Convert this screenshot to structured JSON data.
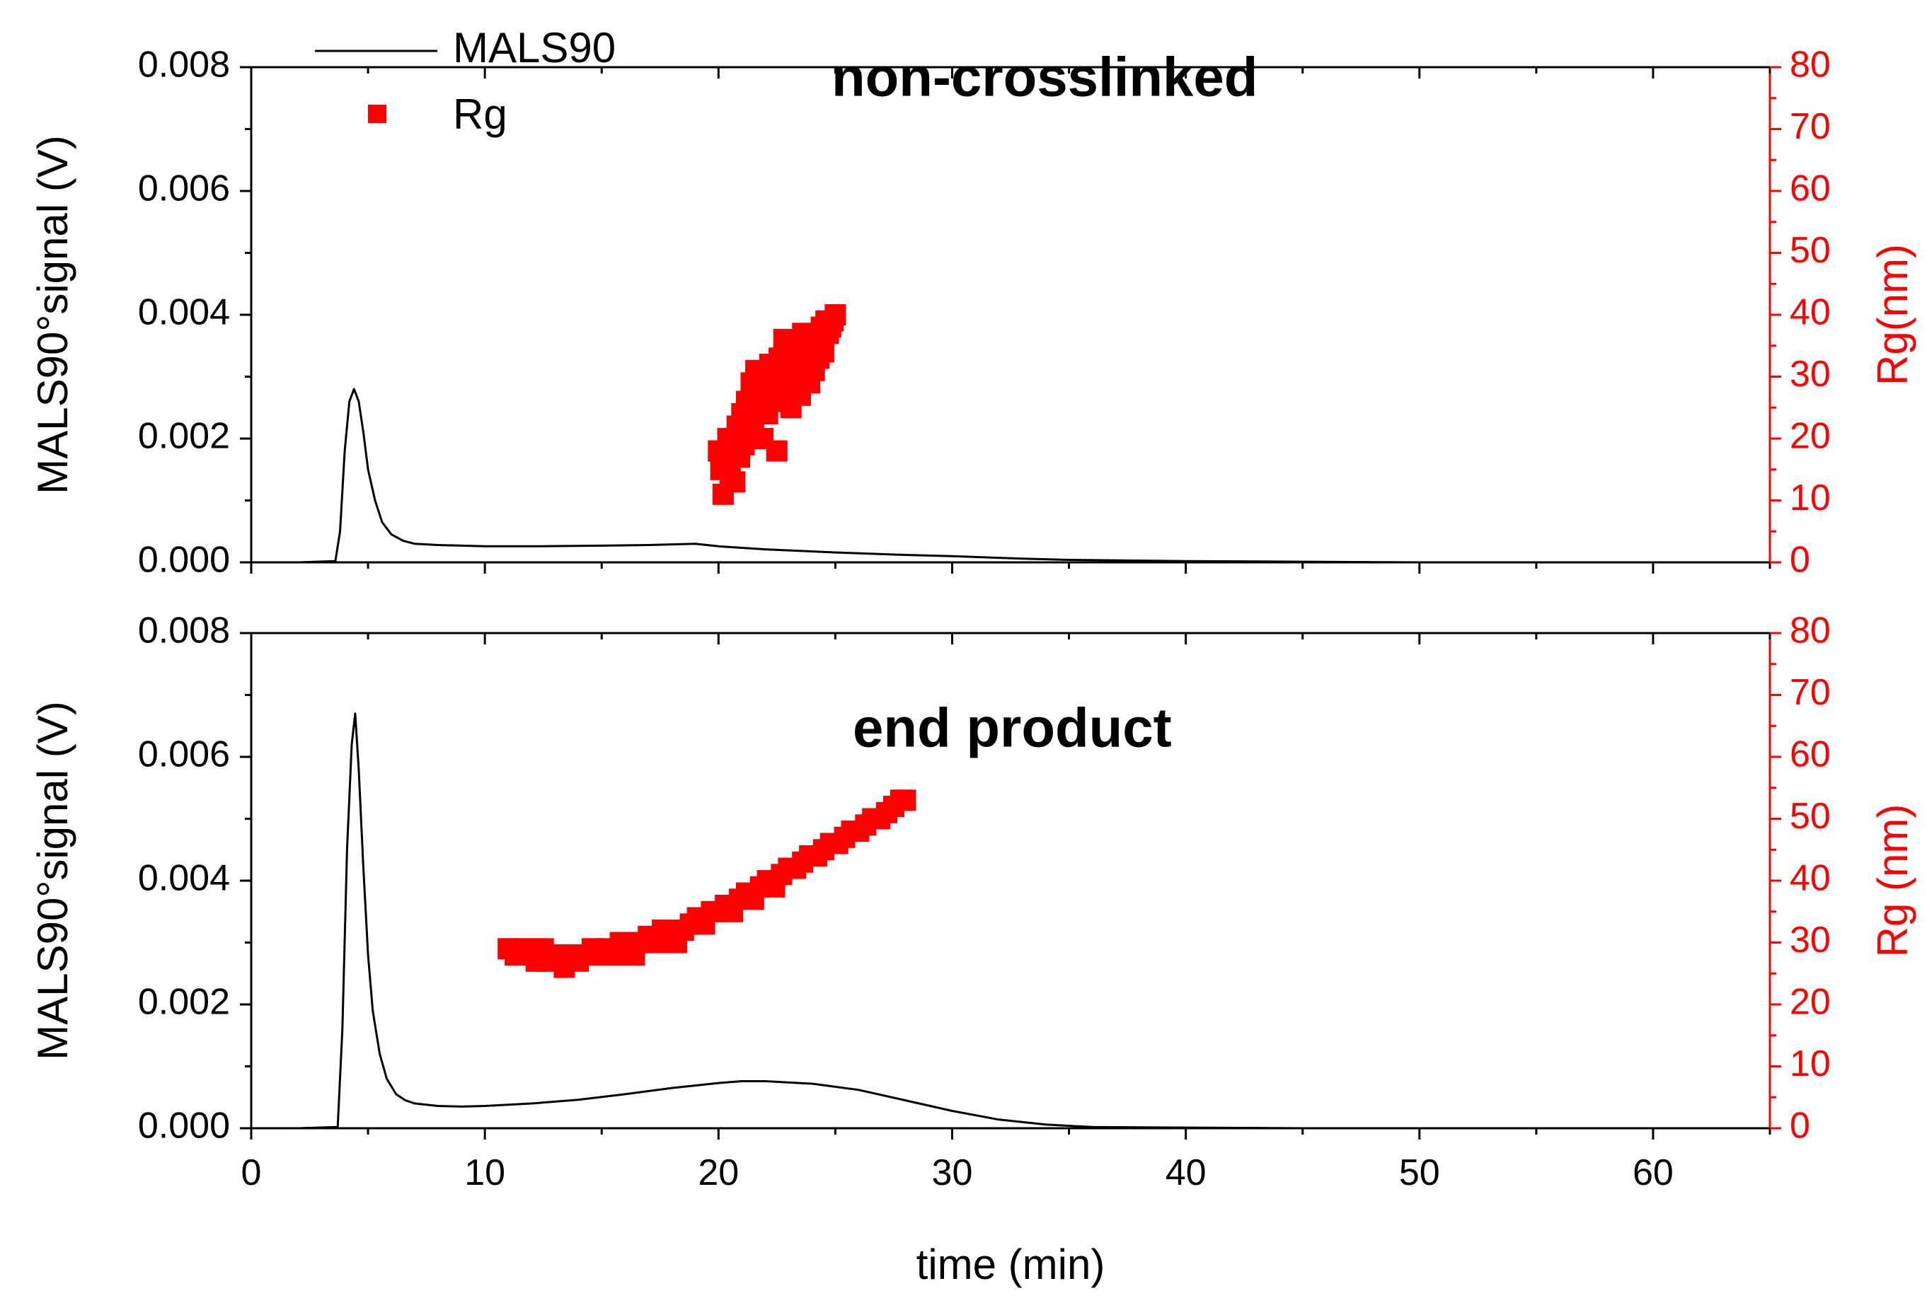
{
  "colors": {
    "signal": "#000000",
    "rg": "#ff0000",
    "background": "#ffffff"
  },
  "legend": {
    "signal_label": "MALS90",
    "rg_label": "Rg"
  },
  "chart_data": [
    {
      "type": "line+scatter",
      "panel_title": "non-crosslinked",
      "xlabel": "time (min)",
      "ylabel": "MALS90°signal (V)",
      "y2label": "Rg(nm)",
      "xlim": [
        0,
        65
      ],
      "ylim": [
        0,
        0.008
      ],
      "y2lim": [
        0,
        80
      ],
      "x_ticks": [
        0,
        10,
        20,
        30,
        40,
        50,
        60
      ],
      "y_ticks": [
        "0.000",
        "0.002",
        "0.004",
        "0.006",
        "0.008"
      ],
      "y2_ticks": [
        "0",
        "10",
        "20",
        "30",
        "40",
        "50",
        "60",
        "70",
        "80"
      ],
      "series": [
        {
          "name": "MALS90",
          "kind": "line",
          "axis": "left",
          "x": [
            0,
            2,
            3.6,
            3.8,
            4.0,
            4.2,
            4.4,
            4.6,
            4.8,
            5.0,
            5.3,
            5.6,
            6.0,
            6.5,
            7.0,
            8,
            10,
            12,
            15,
            17,
            19,
            20,
            22,
            25,
            28,
            30,
            33,
            35,
            40,
            45,
            50,
            55,
            60,
            65
          ],
          "y": [
            0.0,
            0.0,
            2e-05,
            0.0005,
            0.0018,
            0.0026,
            0.0028,
            0.0026,
            0.0021,
            0.0015,
            0.001,
            0.00065,
            0.00045,
            0.00035,
            0.0003,
            0.00028,
            0.00026,
            0.00026,
            0.00027,
            0.00028,
            0.0003,
            0.00026,
            0.00021,
            0.00016,
            0.00012,
            0.0001,
            6e-05,
            4e-05,
            2e-05,
            1e-05,
            0.0,
            0.0,
            0.0,
            0.0
          ]
        },
        {
          "name": "Rg",
          "kind": "scatter",
          "axis": "right",
          "x": [
            20.0,
            20.1,
            20.2,
            20.3,
            20.4,
            20.5,
            20.6,
            20.7,
            20.8,
            20.9,
            21.0,
            21.1,
            21.2,
            21.3,
            21.4,
            21.5,
            21.6,
            21.7,
            21.8,
            21.9,
            22.0,
            22.1,
            22.2,
            22.3,
            22.4,
            22.5,
            22.6,
            22.7,
            22.8,
            22.9,
            23.0,
            23.1,
            23.2,
            23.3,
            23.4,
            23.5,
            23.6,
            23.7,
            23.8,
            23.9,
            24.0,
            24.1,
            24.2,
            24.3,
            24.4,
            24.5,
            24.6,
            24.7,
            24.8,
            24.9,
            25.0
          ],
          "y": [
            18,
            15,
            11,
            17,
            20,
            14,
            19,
            13,
            22,
            17,
            24,
            19,
            26,
            21,
            29,
            22,
            31,
            25,
            27,
            20,
            30,
            24,
            32,
            26,
            29,
            18,
            33,
            27,
            36,
            28,
            31,
            25,
            35,
            30,
            33,
            27,
            37,
            32,
            34,
            29,
            36,
            31,
            35,
            33,
            38,
            34,
            39,
            37,
            38,
            39,
            40
          ]
        }
      ]
    },
    {
      "type": "line+scatter",
      "panel_title": "end product",
      "xlabel": "time (min)",
      "ylabel": "MALS90°signal (V)",
      "y2label": "Rg (nm)",
      "xlim": [
        0,
        65
      ],
      "ylim": [
        0,
        0.008
      ],
      "y2lim": [
        0,
        80
      ],
      "x_ticks": [
        0,
        10,
        20,
        30,
        40,
        50,
        60
      ],
      "y_ticks": [
        "0.000",
        "0.002",
        "0.004",
        "0.006",
        "0.008"
      ],
      "y2_ticks": [
        "0",
        "10",
        "20",
        "30",
        "40",
        "50",
        "60",
        "70",
        "80"
      ],
      "series": [
        {
          "name": "MALS90",
          "kind": "line",
          "axis": "left",
          "x": [
            0,
            2,
            3.7,
            3.9,
            4.1,
            4.3,
            4.45,
            4.6,
            4.8,
            5.0,
            5.2,
            5.5,
            5.8,
            6.2,
            6.6,
            7.0,
            8,
            9,
            10,
            12,
            14,
            16,
            18,
            20,
            21,
            22,
            24,
            26,
            28,
            30,
            32,
            34,
            36,
            40,
            45,
            50,
            55,
            60,
            65
          ],
          "y": [
            0.0,
            0.0,
            2e-05,
            0.0016,
            0.0045,
            0.0062,
            0.0067,
            0.0058,
            0.0042,
            0.0028,
            0.0019,
            0.0012,
            0.0008,
            0.00055,
            0.00045,
            0.0004,
            0.00036,
            0.00035,
            0.00036,
            0.0004,
            0.00046,
            0.00055,
            0.00065,
            0.00073,
            0.00076,
            0.00076,
            0.00072,
            0.00062,
            0.00045,
            0.00028,
            0.00014,
            6e-05,
            2e-05,
            1e-05,
            0.0,
            0.0,
            0.0,
            0.0,
            0.0
          ]
        },
        {
          "name": "Rg",
          "kind": "scatter",
          "axis": "right",
          "x": [
            11.0,
            11.3,
            11.6,
            11.9,
            12.2,
            12.5,
            12.8,
            13.1,
            13.4,
            13.7,
            14.0,
            14.3,
            14.6,
            14.9,
            15.2,
            15.5,
            15.8,
            16.1,
            16.4,
            16.7,
            17.0,
            17.3,
            17.6,
            17.9,
            18.2,
            18.5,
            18.8,
            19.1,
            19.4,
            19.7,
            20.0,
            20.3,
            20.6,
            20.9,
            21.2,
            21.5,
            21.8,
            22.1,
            22.4,
            22.7,
            23.0,
            23.3,
            23.6,
            23.9,
            24.2,
            24.5,
            24.8,
            25.1,
            25.4,
            25.7,
            26.0,
            26.3,
            26.6,
            26.9,
            27.2,
            27.5,
            27.8,
            28.0
          ],
          "y": [
            29,
            28,
            29,
            28,
            27,
            29,
            27,
            28,
            26,
            28,
            27,
            28,
            29,
            28,
            29,
            28,
            30,
            29,
            28,
            30,
            31,
            30,
            32,
            31,
            30,
            32,
            33,
            34,
            33,
            35,
            35,
            36,
            35,
            37,
            38,
            37,
            39,
            40,
            39,
            41,
            42,
            42,
            43,
            44,
            44,
            45,
            46,
            46,
            47,
            48,
            48,
            49,
            50,
            50,
            51,
            52,
            53,
            53
          ]
        }
      ]
    }
  ]
}
